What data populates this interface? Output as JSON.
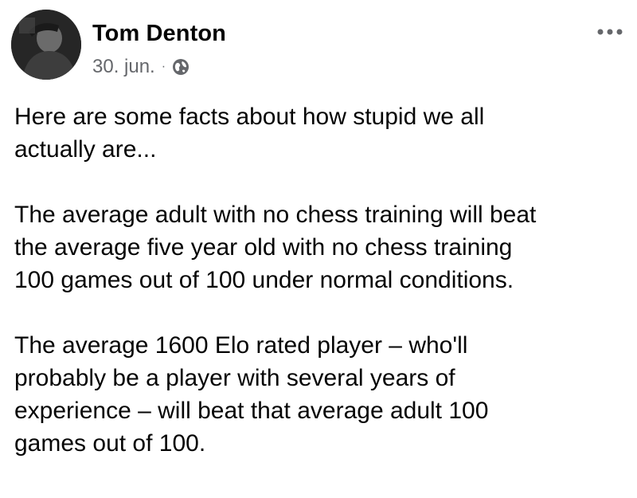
{
  "post": {
    "author": "Tom Denton",
    "date": "30. jun.",
    "separator": "·",
    "privacy_icon": "globe-icon",
    "more_icon": "more-options-icon",
    "paragraphs": [
      "Here are some facts about how stupid we all\nactually are...",
      "The average adult with no chess training will beat\nthe average five year old with no chess training\n100 games out of 100 under normal conditions.",
      "The average 1600 Elo rated player – who'll\nprobably be a player with several years of\nexperience – will beat that average adult 100\ngames out of 100."
    ]
  },
  "colors": {
    "text_primary": "#050505",
    "text_secondary": "#65676b"
  }
}
